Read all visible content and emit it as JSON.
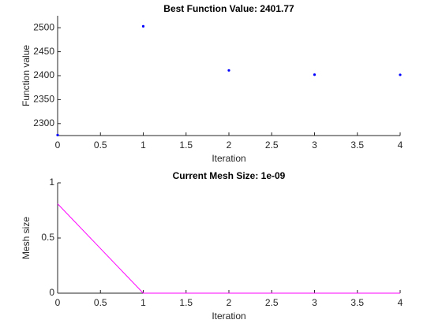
{
  "chart_data": [
    {
      "type": "scatter",
      "title": "Best Function Value: 2401.77",
      "xlabel": "Iteration",
      "ylabel": "Function value",
      "x": [
        0,
        1,
        2,
        3,
        4
      ],
      "values": [
        2276,
        2503,
        2411,
        2402,
        2401.77
      ],
      "color": "#0000ff",
      "xlim": [
        0,
        4
      ],
      "xticks": [
        0,
        0.5,
        1,
        1.5,
        2,
        2.5,
        3,
        3.5,
        4
      ],
      "ylim": [
        2275,
        2525
      ],
      "yticks": [
        2300,
        2350,
        2400,
        2450,
        2500
      ]
    },
    {
      "type": "line",
      "title": "Current Mesh Size: 1e-09",
      "xlabel": "Iteration",
      "ylabel": "Mesh size",
      "x": [
        0,
        1,
        2,
        3,
        4
      ],
      "values": [
        0.81,
        0,
        0,
        0,
        1e-09
      ],
      "color": "#ff00ff",
      "xlim": [
        0,
        4
      ],
      "xticks": [
        0,
        0.5,
        1,
        1.5,
        2,
        2.5,
        3,
        3.5,
        4
      ],
      "ylim": [
        0,
        1
      ],
      "yticks": [
        0,
        0.5,
        1
      ]
    }
  ]
}
